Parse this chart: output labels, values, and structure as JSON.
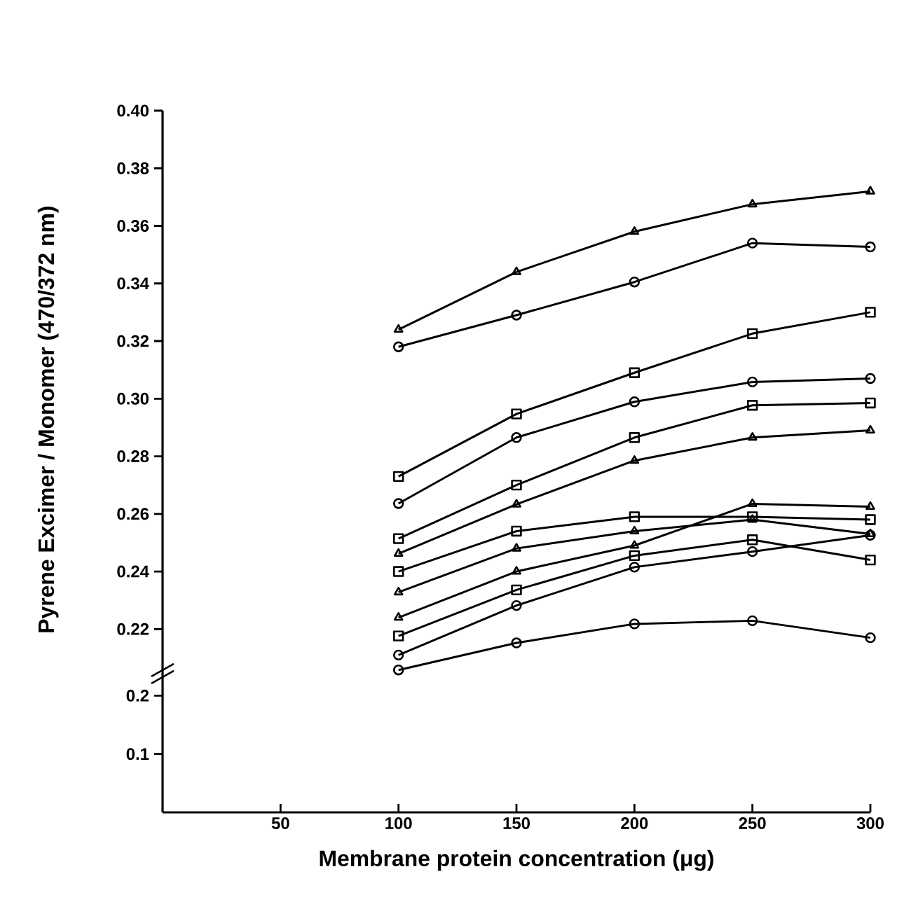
{
  "chart_data": [
    {
      "type": "line",
      "ylabel": "Pyrene Excimer / Monomer (470/372 nm)",
      "x": [
        100,
        150,
        200,
        250,
        300
      ],
      "xlim": [
        0,
        300
      ],
      "ylim": [
        0.205,
        0.4
      ],
      "tick_labels": "y",
      "line_style": "solid",
      "yticks": [
        0.22,
        0.24,
        0.26,
        0.28,
        {
          "value": 0.3,
          "label": "0.30"
        },
        0.32,
        0.34,
        0.36,
        0.38,
        {
          "value": 0.4,
          "label": "0.40"
        }
      ],
      "series": [
        {
          "color": "#000000",
          "marker": "triangle",
          "values": [
            0.324,
            0.344,
            0.358,
            0.3675,
            0.372
          ]
        },
        {
          "color": "#000000",
          "marker": "circle",
          "values": [
            0.318,
            0.329,
            0.3405,
            0.354,
            0.3527
          ]
        },
        {
          "color": "#000000",
          "marker": "square",
          "values": [
            0.273,
            0.2947,
            0.309,
            0.3226,
            0.33
          ]
        },
        {
          "color": "#000000",
          "marker": "circle",
          "values": [
            0.2636,
            0.2865,
            0.2989,
            0.3058,
            0.307
          ]
        },
        {
          "color": "#000000",
          "marker": "square",
          "values": [
            0.2514,
            0.27,
            0.2865,
            0.2977,
            0.2985
          ]
        },
        {
          "color": "#000000",
          "marker": "triangle",
          "values": [
            0.2462,
            0.2633,
            0.2785,
            0.2865,
            0.289
          ]
        },
        {
          "color": "#000000",
          "marker": "square",
          "values": [
            0.24,
            0.254,
            0.259,
            0.259,
            0.258
          ]
        },
        {
          "color": "#000000",
          "marker": "triangle",
          "values": [
            0.2328,
            0.248,
            0.254,
            0.258,
            0.253
          ]
        },
        {
          "color": "#000000",
          "marker": "triangle",
          "values": [
            0.224,
            0.24,
            0.249,
            0.2635,
            0.2625
          ]
        },
        {
          "color": "#000000",
          "marker": "square",
          "values": [
            0.2176,
            0.2336,
            0.2455,
            0.251,
            0.244
          ]
        },
        {
          "color": "#000000",
          "marker": "circle",
          "values": [
            0.211,
            0.2282,
            0.2415,
            0.2469,
            0.2526
          ]
        },
        {
          "color": "#000000",
          "marker": "circle",
          "values": [
            0.2058,
            0.2152,
            0.2218,
            0.2229,
            0.217
          ]
        }
      ]
    },
    {
      "type": "line",
      "xlabel": "Membrane protein concentration (μg)",
      "xlim": [
        0,
        300
      ],
      "ylim": [
        0,
        0.24
      ],
      "xticks": [
        50,
        100,
        150,
        200,
        250,
        300
      ],
      "yticks": [
        0.1,
        0.2
      ]
    }
  ]
}
